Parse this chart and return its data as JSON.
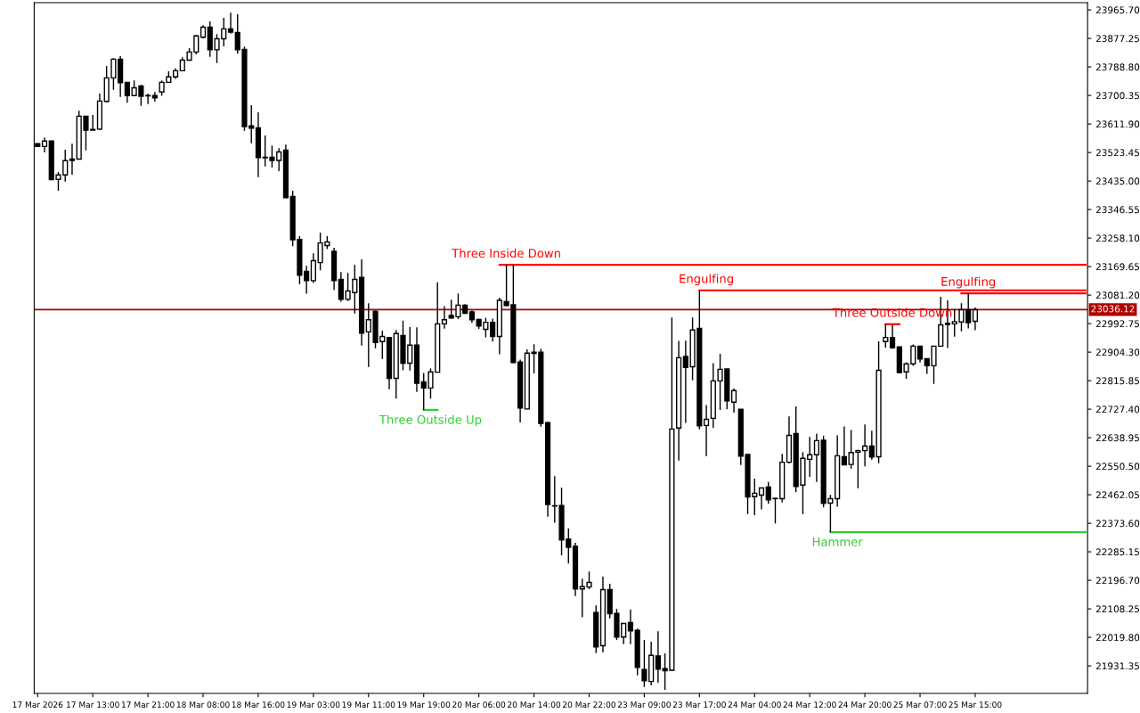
{
  "chart_data": {
    "type": "candlestick",
    "categories": [
      "17 Mar 2026",
      null,
      null,
      null,
      null,
      null,
      null,
      null,
      "17 Mar 13:00",
      null,
      null,
      null,
      null,
      null,
      null,
      null,
      "17 Mar 21:00",
      null,
      null,
      null,
      null,
      null,
      null,
      null,
      "18 Mar 08:00",
      null,
      null,
      null,
      null,
      null,
      null,
      null,
      "18 Mar 16:00",
      null,
      null,
      null,
      null,
      null,
      null,
      null,
      "19 Mar 03:00",
      null,
      null,
      null,
      null,
      null,
      null,
      null,
      "19 Mar 11:00",
      null,
      null,
      null,
      null,
      null,
      null,
      null,
      "19 Mar 19:00",
      null,
      null,
      null,
      null,
      null,
      null,
      null,
      "20 Mar 06:00",
      null,
      null,
      null,
      null,
      null,
      null,
      null,
      "20 Mar 14:00",
      null,
      null,
      null,
      null,
      null,
      null,
      null,
      "20 Mar 22:00",
      null,
      null,
      null,
      null,
      null,
      null,
      null,
      "23 Mar 09:00",
      null,
      null,
      null,
      null,
      null,
      null,
      null,
      "23 Mar 17:00",
      null,
      null,
      null,
      null,
      null,
      null,
      null,
      "24 Mar 04:00",
      null,
      null,
      null,
      null,
      null,
      null,
      null,
      "24 Mar 12:00",
      null,
      null,
      null,
      null,
      null,
      null,
      null,
      "24 Mar 20:00",
      null,
      null,
      null,
      null,
      null,
      null,
      null,
      "25 Mar 07:00",
      null,
      null,
      null,
      null,
      null,
      null,
      null,
      "25 Mar 15:00",
      null,
      null,
      null,
      null,
      null,
      null,
      null,
      null,
      null,
      null,
      null,
      null,
      null,
      null,
      null,
      null
    ],
    "series": [
      {
        "type": "line",
        "name": "Three Inside Down",
        "color": "#ff0000",
        "values": [
          null,
          null,
          null,
          null,
          null,
          null,
          null,
          null,
          null,
          null,
          null,
          null,
          null,
          null,
          null,
          null,
          null,
          null,
          null,
          null,
          null,
          null,
          null,
          null,
          null,
          null,
          null,
          null,
          null,
          null,
          null,
          null,
          null,
          null,
          null,
          null,
          null,
          null,
          null,
          null,
          null,
          null,
          null,
          null,
          null,
          null,
          null,
          null,
          null,
          null,
          null,
          null,
          null,
          null,
          null,
          null,
          null,
          null,
          null,
          null,
          null,
          null,
          null,
          null,
          null,
          null,
          null,
          23175,
          23175,
          23175,
          23175,
          23175,
          23175,
          23175,
          23175,
          23175,
          23175,
          23175,
          23175,
          23175,
          23175,
          23175,
          23175,
          23175,
          23175,
          23175,
          23175,
          23175,
          23175,
          23175,
          23175,
          23175,
          23175,
          23175,
          23175,
          23175,
          23175,
          23175,
          23175,
          23175,
          23175,
          23175,
          23175,
          23175,
          23175,
          23175,
          23175,
          23175,
          23175,
          23175,
          23175,
          23175,
          23175,
          23175,
          23175,
          23175,
          23175,
          23175,
          23175,
          23175,
          23175,
          23175,
          23175,
          23175,
          23175,
          23175,
          23175,
          23175,
          23175,
          23175,
          23175,
          23175,
          23175,
          23175,
          23175,
          23175,
          23175,
          23175,
          23175,
          23175,
          23175,
          23175,
          23175,
          23175,
          23175,
          23175,
          23175,
          23175,
          23175,
          23175,
          23175,
          23175,
          23175
        ]
      },
      {
        "type": "line",
        "name": "Engulfing",
        "color": "#ff0000",
        "values": [
          null,
          null,
          null,
          null,
          null,
          null,
          null,
          null,
          null,
          null,
          null,
          null,
          null,
          null,
          null,
          null,
          null,
          null,
          null,
          null,
          null,
          null,
          null,
          null,
          null,
          null,
          null,
          null,
          null,
          null,
          null,
          null,
          null,
          null,
          null,
          null,
          null,
          null,
          null,
          null,
          null,
          null,
          null,
          null,
          null,
          null,
          null,
          null,
          null,
          null,
          null,
          null,
          null,
          null,
          null,
          null,
          null,
          null,
          null,
          null,
          null,
          null,
          null,
          null,
          null,
          null,
          null,
          null,
          null,
          null,
          null,
          null,
          null,
          null,
          null,
          null,
          null,
          null,
          null,
          null,
          null,
          null,
          null,
          null,
          null,
          null,
          null,
          null,
          null,
          null,
          null,
          null,
          null,
          null,
          null,
          null,
          23096,
          23096,
          23096,
          23096,
          23096,
          23096,
          23096,
          23096,
          23096,
          23096,
          23096,
          23096,
          23096,
          23096,
          23096,
          23096,
          23096,
          23096,
          23096,
          23096,
          23096,
          23096,
          23096,
          23096,
          23096,
          23096,
          23096,
          23096,
          23096,
          23096,
          23096,
          23096,
          23096,
          23096,
          23096,
          23096,
          23096,
          23096,
          23096,
          23096,
          23096,
          23096,
          23096,
          23096,
          23096,
          23096,
          23096,
          23096,
          23096,
          23096,
          23096,
          23096,
          23096,
          23096,
          23096,
          23096,
          23096
        ]
      },
      {
        "type": "line",
        "name": "Engulfing",
        "color": "#ff0000",
        "values": [
          null,
          null,
          null,
          null,
          null,
          null,
          null,
          null,
          null,
          null,
          null,
          null,
          null,
          null,
          null,
          null,
          null,
          null,
          null,
          null,
          null,
          null,
          null,
          null,
          null,
          null,
          null,
          null,
          null,
          null,
          null,
          null,
          null,
          null,
          null,
          null,
          null,
          null,
          null,
          null,
          null,
          null,
          null,
          null,
          null,
          null,
          null,
          null,
          null,
          null,
          null,
          null,
          null,
          null,
          null,
          null,
          null,
          null,
          null,
          null,
          null,
          null,
          null,
          null,
          null,
          null,
          null,
          null,
          null,
          null,
          null,
          null,
          null,
          null,
          null,
          null,
          null,
          null,
          null,
          null,
          null,
          null,
          null,
          null,
          null,
          null,
          null,
          null,
          null,
          null,
          null,
          null,
          null,
          null,
          null,
          null,
          null,
          null,
          null,
          null,
          null,
          null,
          null,
          null,
          null,
          null,
          null,
          null,
          null,
          null,
          null,
          null,
          null,
          null,
          null,
          null,
          null,
          null,
          null,
          null,
          null,
          null,
          null,
          null,
          null,
          null,
          null,
          null,
          null,
          null,
          null,
          null,
          null,
          null,
          23087,
          23087,
          23087,
          23087,
          23087,
          23087,
          23087,
          23087,
          23087,
          23087,
          23087,
          23087,
          23087,
          23087,
          23087,
          23087,
          23087,
          23087,
          23087
        ]
      },
      {
        "type": "line",
        "name": "Hammer",
        "color": "#32cd32",
        "values": [
          null,
          null,
          null,
          null,
          null,
          null,
          null,
          null,
          null,
          null,
          null,
          null,
          null,
          null,
          null,
          null,
          null,
          null,
          null,
          null,
          null,
          null,
          null,
          null,
          null,
          null,
          null,
          null,
          null,
          null,
          null,
          null,
          null,
          null,
          null,
          null,
          null,
          null,
          null,
          null,
          null,
          null,
          null,
          null,
          null,
          null,
          null,
          null,
          null,
          null,
          null,
          null,
          null,
          null,
          null,
          null,
          null,
          null,
          null,
          null,
          null,
          null,
          null,
          null,
          null,
          null,
          null,
          null,
          null,
          null,
          null,
          null,
          null,
          null,
          null,
          null,
          null,
          null,
          null,
          null,
          null,
          null,
          null,
          null,
          null,
          null,
          null,
          null,
          null,
          null,
          null,
          null,
          null,
          null,
          null,
          null,
          null,
          null,
          null,
          null,
          null,
          null,
          null,
          null,
          null,
          null,
          null,
          null,
          null,
          null,
          null,
          null,
          null,
          null,
          null,
          22346,
          22346,
          22346,
          22346,
          22346,
          22346,
          22346,
          22346,
          22346,
          22346,
          22346,
          22346,
          22346,
          22346,
          22346,
          22346,
          22346,
          22346,
          22346,
          22346,
          22346,
          22346,
          22346,
          22346,
          22346,
          22346,
          22346,
          22346,
          22346,
          22346,
          22346,
          22346,
          22346,
          22346,
          22346,
          22346,
          22346,
          22346
        ]
      },
      {
        "type": "line",
        "name": "Three Outside Up",
        "color": "#32cd32",
        "values": [
          null,
          null,
          null,
          null,
          null,
          null,
          null,
          null,
          null,
          null,
          null,
          null,
          null,
          null,
          null,
          null,
          null,
          null,
          null,
          null,
          null,
          null,
          null,
          null,
          null,
          null,
          null,
          null,
          null,
          null,
          null,
          null,
          null,
          null,
          null,
          null,
          null,
          null,
          null,
          null,
          null,
          null,
          null,
          null,
          null,
          null,
          null,
          null,
          null,
          null,
          null,
          null,
          null,
          null,
          null,
          null,
          22725,
          22725,
          22725,
          null,
          null,
          null,
          null,
          null,
          null,
          null,
          null,
          null,
          null,
          null,
          null,
          null,
          null,
          null,
          null,
          null,
          null,
          null,
          null,
          null,
          null,
          null,
          null,
          null,
          null,
          null,
          null,
          null,
          null,
          null,
          null,
          null,
          null,
          null,
          null,
          null,
          null,
          null,
          null,
          null,
          null,
          null,
          null,
          null,
          null,
          null,
          null,
          null,
          null,
          null,
          null,
          null,
          null,
          null,
          null,
          null,
          null,
          null,
          null,
          null,
          null,
          null,
          null,
          null,
          null,
          null,
          null,
          null,
          null,
          null,
          null,
          null,
          null,
          null,
          null,
          null,
          null,
          null,
          null,
          null,
          null,
          null,
          null,
          null,
          null,
          null,
          null,
          null,
          null,
          null,
          null,
          null,
          null
        ]
      },
      {
        "type": "line",
        "name": "Three Outside Down",
        "color": "#ff0000",
        "values": [
          null,
          null,
          null,
          null,
          null,
          null,
          null,
          null,
          null,
          null,
          null,
          null,
          null,
          null,
          null,
          null,
          null,
          null,
          null,
          null,
          null,
          null,
          null,
          null,
          null,
          null,
          null,
          null,
          null,
          null,
          null,
          null,
          null,
          null,
          null,
          null,
          null,
          null,
          null,
          null,
          null,
          null,
          null,
          null,
          null,
          null,
          null,
          null,
          null,
          null,
          null,
          null,
          null,
          null,
          null,
          null,
          null,
          null,
          null,
          null,
          null,
          null,
          null,
          null,
          null,
          null,
          null,
          null,
          null,
          null,
          null,
          null,
          null,
          null,
          null,
          null,
          null,
          null,
          null,
          null,
          null,
          null,
          null,
          null,
          null,
          null,
          null,
          null,
          null,
          null,
          null,
          null,
          null,
          null,
          null,
          null,
          null,
          null,
          null,
          null,
          null,
          null,
          null,
          null,
          null,
          null,
          null,
          null,
          null,
          null,
          null,
          null,
          null,
          null,
          null,
          null,
          null,
          null,
          null,
          null,
          null,
          null,
          null,
          22991,
          22991,
          22991,
          null,
          null,
          null,
          null,
          null,
          null,
          null,
          null,
          null,
          null,
          null,
          null,
          null,
          null,
          null,
          null,
          null,
          null,
          null,
          null,
          null,
          null,
          null,
          null,
          null,
          null,
          null
        ]
      }
    ],
    "color": "#000000",
    "ohlc": [
      [
        23551,
        23552,
        23541,
        23542
      ],
      [
        23542,
        23570,
        23524,
        23559
      ],
      [
        23559,
        23561,
        23438,
        23439
      ],
      [
        23440,
        23463,
        23405,
        23454
      ],
      [
        23454,
        23532,
        23433,
        23498
      ],
      [
        23503,
        23551,
        23455,
        23499
      ],
      [
        23503,
        23653,
        23502,
        23636
      ],
      [
        23636,
        23637,
        23530,
        23593
      ],
      [
        23595,
        23640,
        23592,
        23593
      ],
      [
        23596,
        23706,
        23593,
        23683
      ],
      [
        23682,
        23792,
        23679,
        23755
      ],
      [
        23755,
        23816,
        23718,
        23813
      ],
      [
        23813,
        23822,
        23696,
        23740
      ],
      [
        23741,
        23742,
        23678,
        23700
      ],
      [
        23700,
        23747,
        23699,
        23724
      ],
      [
        23730,
        23733,
        23668,
        23698
      ],
      [
        23700,
        23706,
        23674,
        23699
      ],
      [
        23700,
        23711,
        23681,
        23693
      ],
      [
        23711,
        23747,
        23699,
        23741
      ],
      [
        23741,
        23775,
        23740,
        23758
      ],
      [
        23758,
        23785,
        23752,
        23777
      ],
      [
        23777,
        23819,
        23776,
        23810
      ],
      [
        23810,
        23847,
        23809,
        23835
      ],
      [
        23835,
        23888,
        23828,
        23885
      ],
      [
        23881,
        23918,
        23877,
        23912
      ],
      [
        23912,
        23930,
        23820,
        23842
      ],
      [
        23842,
        23891,
        23801,
        23876
      ],
      [
        23876,
        23941,
        23853,
        23907
      ],
      [
        23907,
        23957,
        23892,
        23897
      ],
      [
        23896,
        23952,
        23830,
        23842
      ],
      [
        23843,
        23852,
        23591,
        23604
      ],
      [
        23606,
        23670,
        23552,
        23599
      ],
      [
        23600,
        23648,
        23447,
        23508
      ],
      [
        23509,
        23576,
        23480,
        23507
      ],
      [
        23509,
        23545,
        23477,
        23499
      ],
      [
        23499,
        23537,
        23466,
        23525
      ],
      [
        23531,
        23548,
        23382,
        23383
      ],
      [
        23387,
        23405,
        23233,
        23253
      ],
      [
        23254,
        23264,
        23115,
        23143
      ],
      [
        23155,
        23172,
        23086,
        23126
      ],
      [
        23126,
        23211,
        23119,
        23188
      ],
      [
        23182,
        23275,
        23158,
        23243
      ],
      [
        23235,
        23264,
        23224,
        23246
      ],
      [
        23217,
        23228,
        23097,
        23126
      ],
      [
        23130,
        23153,
        23061,
        23068
      ],
      [
        23068,
        23150,
        23063,
        23094
      ],
      [
        23089,
        23175,
        23024,
        23130
      ],
      [
        23136,
        23192,
        22925,
        22963
      ],
      [
        22967,
        23056,
        22858,
        23005
      ],
      [
        23031,
        23033,
        22916,
        22934
      ],
      [
        22937,
        22971,
        22883,
        22953
      ],
      [
        22950,
        22951,
        22789,
        22823
      ],
      [
        22823,
        22973,
        22760,
        22962
      ],
      [
        22956,
        23002,
        22848,
        22870
      ],
      [
        22870,
        22982,
        22847,
        22926
      ],
      [
        22926,
        22981,
        22781,
        22808
      ],
      [
        22812,
        22840,
        22725,
        22793
      ],
      [
        22793,
        22854,
        22760,
        22843
      ],
      [
        22842,
        23121,
        22841,
        22992
      ],
      [
        22992,
        23047,
        22977,
        23005
      ],
      [
        23018,
        23067,
        23008,
        23010
      ],
      [
        23014,
        23086,
        23007,
        23050
      ],
      [
        23050,
        23053,
        23023,
        23025
      ],
      [
        23029,
        23034,
        22995,
        23005
      ],
      [
        23006,
        23008,
        22976,
        22985
      ],
      [
        22975,
        23011,
        22950,
        22997
      ],
      [
        22997,
        23008,
        22937,
        22953
      ],
      [
        22953,
        23073,
        22898,
        23065
      ],
      [
        23061,
        23175,
        23047,
        23049
      ],
      [
        23051,
        23175,
        22871,
        22872
      ],
      [
        22874,
        22881,
        22686,
        22731
      ],
      [
        22728,
        22913,
        22727,
        22901
      ],
      [
        22904,
        22929,
        22838,
        22900
      ],
      [
        22904,
        22915,
        22673,
        22683
      ],
      [
        22686,
        22688,
        22394,
        22432
      ],
      [
        22428,
        22520,
        22375,
        22427
      ],
      [
        22429,
        22484,
        22274,
        22322
      ],
      [
        22324,
        22357,
        22249,
        22299
      ],
      [
        22302,
        22313,
        22148,
        22170
      ],
      [
        22170,
        22202,
        22082,
        22177
      ],
      [
        22176,
        22224,
        22169,
        22190
      ],
      [
        22097,
        22119,
        21971,
        21990
      ],
      [
        21994,
        22208,
        21973,
        22168
      ],
      [
        22168,
        22186,
        22079,
        22093
      ],
      [
        22094,
        22108,
        22012,
        22021
      ],
      [
        22021,
        22064,
        21999,
        22063
      ],
      [
        22066,
        22106,
        21999,
        22040
      ],
      [
        22042,
        22047,
        21902,
        21927
      ],
      [
        21920,
        22012,
        21866,
        21885
      ],
      [
        21883,
        22006,
        21871,
        21964
      ],
      [
        21962,
        22039,
        21879,
        21921
      ],
      [
        21923,
        21970,
        21857,
        21916
      ],
      [
        21918,
        23012,
        21916,
        22666
      ],
      [
        22669,
        22939,
        22568,
        22887
      ],
      [
        22891,
        22940,
        22685,
        22857
      ],
      [
        22859,
        23012,
        22817,
        22973
      ],
      [
        22978,
        23095,
        22665,
        22676
      ],
      [
        22677,
        22740,
        22582,
        22696
      ],
      [
        22699,
        22870,
        22669,
        22815
      ],
      [
        22815,
        22899,
        22725,
        22851
      ],
      [
        22852,
        22853,
        22727,
        22753
      ],
      [
        22749,
        22792,
        22717,
        22785
      ],
      [
        22727,
        22728,
        22554,
        22582
      ],
      [
        22587,
        22588,
        22402,
        22455
      ],
      [
        22456,
        22512,
        22399,
        22467
      ],
      [
        22461,
        22484,
        22417,
        22483
      ],
      [
        22486,
        22502,
        22434,
        22446
      ],
      [
        22451,
        22452,
        22373,
        22450
      ],
      [
        22450,
        22589,
        22438,
        22563
      ],
      [
        22563,
        22705,
        22559,
        22646
      ],
      [
        22652,
        22736,
        22470,
        22488
      ],
      [
        22492,
        22594,
        22402,
        22575
      ],
      [
        22572,
        22641,
        22518,
        22586
      ],
      [
        22586,
        22652,
        22502,
        22630
      ],
      [
        22631,
        22645,
        22423,
        22435
      ],
      [
        22436,
        22462,
        22346,
        22450
      ],
      [
        22450,
        22646,
        22425,
        22583
      ],
      [
        22580,
        22674,
        22554,
        22555
      ],
      [
        22556,
        22663,
        22543,
        22593
      ],
      [
        22594,
        22602,
        22482,
        22599
      ],
      [
        22599,
        22680,
        22550,
        22613
      ],
      [
        22613,
        22661,
        22571,
        22579
      ],
      [
        22580,
        22938,
        22560,
        22848
      ],
      [
        22937,
        22990,
        22918,
        22950
      ],
      [
        22950,
        22989,
        22915,
        22918
      ],
      [
        22921,
        22922,
        22840,
        22841
      ],
      [
        22843,
        22873,
        22822,
        22868
      ],
      [
        22868,
        22928,
        22862,
        22923
      ],
      [
        22923,
        22924,
        22872,
        22883
      ],
      [
        22884,
        22885,
        22837,
        22862
      ],
      [
        22862,
        22924,
        22806,
        22923
      ],
      [
        22923,
        23076,
        22922,
        22989
      ],
      [
        22994,
        23065,
        22917,
        22990
      ],
      [
        22992,
        23038,
        22952,
        22999
      ],
      [
        22998,
        23056,
        22969,
        23036
      ],
      [
        23036,
        23086,
        22978,
        22996
      ],
      [
        23000,
        23043,
        22972,
        23036
      ],
      null,
      null,
      null,
      null,
      null,
      null,
      null,
      null,
      null,
      null,
      null,
      null,
      null,
      null,
      null,
      null
    ],
    "ylim": [
      21846,
      23988
    ],
    "yticks": [
      {
        "value": 23965.7,
        "label": "23965.70"
      },
      {
        "value": 23877.25,
        "label": "23877.25"
      },
      {
        "value": 23788.8,
        "label": "23788.80"
      },
      {
        "value": 23700.35,
        "label": "23700.35"
      },
      {
        "value": 23611.9,
        "label": "23611.90"
      },
      {
        "value": 23523.45,
        "label": "23523.45"
      },
      {
        "value": 23435.0,
        "label": "23435.00"
      },
      {
        "value": 23346.55,
        "label": "23346.55"
      },
      {
        "value": 23258.1,
        "label": "23258.10"
      },
      {
        "value": 23169.65,
        "label": "23169.65"
      },
      {
        "value": 23081.2,
        "label": "23081.20"
      },
      {
        "value": 22992.75,
        "label": "22992.75"
      },
      {
        "value": 22904.3,
        "label": "22904.30"
      },
      {
        "value": 22815.85,
        "label": "22815.85"
      },
      {
        "value": 22727.4,
        "label": "22727.40"
      },
      {
        "value": 22638.95,
        "label": "22638.95"
      },
      {
        "value": 22550.5,
        "label": "22550.50"
      },
      {
        "value": 22462.05,
        "label": "22462.05"
      },
      {
        "value": 22373.6,
        "label": "22373.60"
      },
      {
        "value": 22285.15,
        "label": "22285.15"
      },
      {
        "value": 22196.7,
        "label": "22196.70"
      },
      {
        "value": 22108.25,
        "label": "22108.25"
      },
      {
        "value": 22019.8,
        "label": "22019.80"
      },
      {
        "value": 21931.35,
        "label": "21931.35"
      }
    ],
    "grid": false,
    "ref_lines": [
      {
        "axis": "y",
        "value": 23036.12,
        "label": "23036.12",
        "color": "#b00000"
      }
    ]
  }
}
